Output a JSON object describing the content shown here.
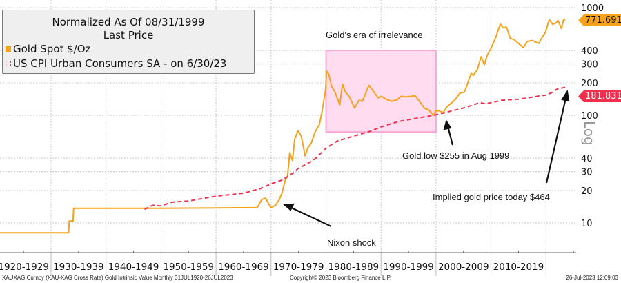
{
  "legend": {
    "title": "Normalized As Of 08/31/1999",
    "subtitle": "Last Price",
    "items": [
      {
        "label": "Gold Spot $/Oz",
        "color": "#f7a21b"
      },
      {
        "label": "US CPI Urban Consumers SA -  on 6/30/23",
        "color": "#f0304f"
      }
    ]
  },
  "annotations": {
    "era": "Gold's era of irrelevance",
    "nixon": "Nixon shock",
    "low": "Gold low $255 in Aug 1999",
    "implied": "Implied gold price today $464"
  },
  "last_values": {
    "gold": "771.6914",
    "cpi": "181.8318"
  },
  "footer": {
    "left": "XAUXAG Curncy (XAU-XAG Cross Rate) Gold Intrinsic Value  Monthly 31JUL1920-26JUL2023",
    "center": "Copyright© 2023 Bloomberg Finance L.P.",
    "right": "26-Jul-2023 12:09:03"
  },
  "chart_data": {
    "type": "line",
    "yscale": "log",
    "ylabel_right": "Log",
    "ylim": [
      5,
      1000
    ],
    "xlim": [
      1920,
      2024
    ],
    "grid": true,
    "legend_position": "top-left",
    "yticks": [
      10,
      20,
      30,
      40,
      100,
      200,
      300,
      400,
      1000
    ],
    "xtick_labels": [
      "1920-1929",
      "1930-1939",
      "1940-1949",
      "1950-1959",
      "1960-1969",
      "1970-1979",
      "1980-1989",
      "1990-1999",
      "2000-2009",
      "2010-2019"
    ],
    "highlight_box": {
      "x": [
        1980,
        2000
      ],
      "y": [
        70,
        400
      ],
      "color": "#ffc8e6"
    },
    "series": [
      {
        "name": "Gold Spot $/Oz",
        "color": "#f7a21b",
        "style": "solid",
        "x": [
          1920.7,
          1933.2,
          1933.3,
          1934.0,
          1934.1,
          1940,
          1950,
          1960,
          1967.5,
          1968.3,
          1969.0,
          1969.5,
          1970.0,
          1970.8,
          1971.5,
          1972.0,
          1972.6,
          1973.0,
          1973.4,
          1973.9,
          1974.3,
          1974.9,
          1975.5,
          1976.2,
          1976.7,
          1977.3,
          1978.0,
          1978.8,
          1979.3,
          1979.9,
          1980.1,
          1980.5,
          1981.0,
          1981.6,
          1982.5,
          1983.0,
          1983.5,
          1984.2,
          1985.2,
          1986.0,
          1986.6,
          1987.8,
          1988.5,
          1989.5,
          1990.1,
          1991.0,
          1992.0,
          1993.0,
          1993.6,
          1994.5,
          1995.5,
          1996.2,
          1997.0,
          1997.9,
          1998.6,
          1999.6,
          1999.9,
          2000.5,
          2001.3,
          2002.0,
          2002.8,
          2003.5,
          2004.3,
          2005.2,
          2006.0,
          2006.4,
          2006.8,
          2007.5,
          2008.2,
          2008.8,
          2009.3,
          2010.0,
          2010.8,
          2011.7,
          2012.2,
          2012.8,
          2013.5,
          2014.2,
          2015.0,
          2015.9,
          2016.6,
          2017.5,
          2018.7,
          2019.3,
          2019.9,
          2020.6,
          2021.2,
          2021.8,
          2022.2,
          2022.8,
          2023.2,
          2023.5
        ],
        "values": [
          8.1,
          8.1,
          10.4,
          10.4,
          13.7,
          13.7,
          13.7,
          13.8,
          13.9,
          16.5,
          17,
          15.2,
          13.9,
          14.6,
          16.5,
          19,
          25,
          27,
          45,
          38,
          60,
          72,
          64,
          42,
          50,
          55,
          70,
          82,
          110,
          170,
          258,
          240,
          185,
          165,
          125,
          195,
          165,
          150,
          117,
          138,
          135,
          190,
          170,
          145,
          150,
          140,
          135,
          140,
          150,
          148,
          150,
          152,
          135,
          116,
          113,
          100,
          110,
          110,
          106,
          120,
          130,
          140,
          160,
          165,
          215,
          245,
          235,
          265,
          350,
          295,
          360,
          420,
          520,
          705,
          650,
          660,
          520,
          505,
          465,
          425,
          485,
          495,
          465,
          530,
          590,
          775,
          700,
          720,
          760,
          640,
          770,
          771.69
        ]
      },
      {
        "name": "US CPI Urban Consumers SA -  on 6/30/23",
        "color": "#f0304f",
        "style": "dashed",
        "x": [
          1947.0,
          1948.5,
          1950,
          1952,
          1955,
          1958,
          1960,
          1965,
          1968,
          1970,
          1972,
          1974,
          1975,
          1977,
          1978,
          1980,
          1982,
          1985,
          1988,
          1990,
          1993,
          1995,
          1997,
          1999.6,
          2002,
          2005,
          2008,
          2009,
          2010,
          2012,
          2015,
          2017,
          2019,
          2020,
          2021,
          2022,
          2023.5
        ],
        "values": [
          13.4,
          14.6,
          14.4,
          15.6,
          16,
          17,
          17.7,
          18.9,
          20.8,
          23.1,
          25,
          29,
          32.2,
          36.5,
          39.4,
          49.5,
          57.5,
          64,
          71,
          78,
          87,
          91,
          95,
          100,
          107,
          117,
          131,
          128,
          131,
          138,
          141,
          146,
          152,
          154,
          162,
          175,
          181.83
        ]
      }
    ]
  }
}
